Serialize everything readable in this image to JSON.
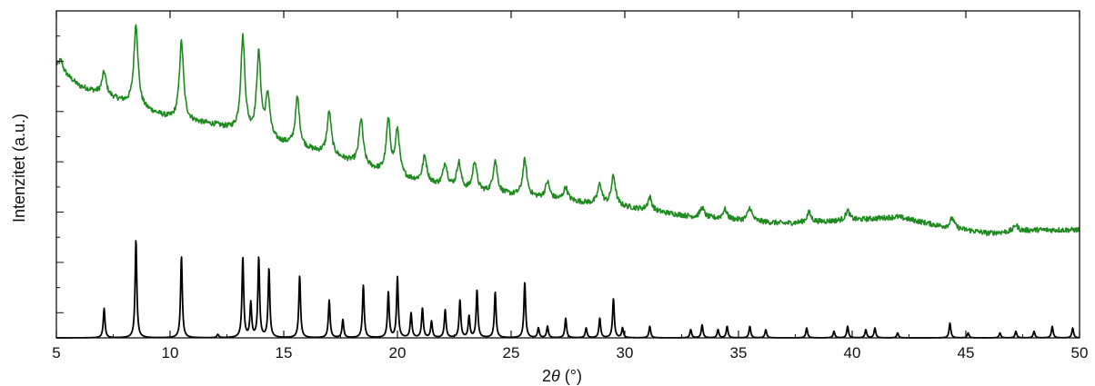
{
  "chart_data": {
    "type": "line",
    "xlabel": "2θ (°)",
    "ylabel": "Intenzitet (a.u.)",
    "xlim": [
      5,
      50
    ],
    "ylim": [
      0,
      100
    ],
    "x_ticks": [
      5,
      10,
      15,
      20,
      25,
      30,
      35,
      40,
      45,
      50
    ],
    "y_tick_labels": "none",
    "grid": false,
    "legend": "none",
    "series": [
      {
        "color": "#1f8a1f",
        "style": "noisy experimental pattern, offset upward",
        "baseline": [
          [
            5,
            83
          ],
          [
            6,
            77
          ],
          [
            8,
            72
          ],
          [
            10,
            67
          ],
          [
            12,
            65
          ],
          [
            14,
            61
          ],
          [
            17,
            56
          ],
          [
            20,
            49
          ],
          [
            23,
            45
          ],
          [
            26,
            43
          ],
          [
            30,
            40
          ],
          [
            33,
            37
          ],
          [
            37,
            35
          ],
          [
            40,
            36
          ],
          [
            42,
            37
          ],
          [
            44,
            34
          ],
          [
            46,
            32
          ],
          [
            48,
            33
          ],
          [
            50,
            33
          ]
        ],
        "peaks": [
          {
            "x": 5.2,
            "h": 3
          },
          {
            "x": 7.1,
            "h": 7
          },
          {
            "x": 8.5,
            "h": 25
          },
          {
            "x": 10.5,
            "h": 24
          },
          {
            "x": 13.2,
            "h": 29
          },
          {
            "x": 13.9,
            "h": 25
          },
          {
            "x": 14.3,
            "h": 13
          },
          {
            "x": 15.6,
            "h": 15
          },
          {
            "x": 17.0,
            "h": 13
          },
          {
            "x": 18.4,
            "h": 14
          },
          {
            "x": 19.6,
            "h": 16
          },
          {
            "x": 20.0,
            "h": 14
          },
          {
            "x": 21.2,
            "h": 8
          },
          {
            "x": 22.1,
            "h": 7
          },
          {
            "x": 22.7,
            "h": 8
          },
          {
            "x": 23.4,
            "h": 9
          },
          {
            "x": 24.3,
            "h": 10
          },
          {
            "x": 25.6,
            "h": 11
          },
          {
            "x": 26.6,
            "h": 5
          },
          {
            "x": 27.4,
            "h": 4
          },
          {
            "x": 28.9,
            "h": 6
          },
          {
            "x": 29.5,
            "h": 9
          },
          {
            "x": 31.1,
            "h": 4
          },
          {
            "x": 33.4,
            "h": 3
          },
          {
            "x": 34.4,
            "h": 3
          },
          {
            "x": 35.5,
            "h": 4
          },
          {
            "x": 38.1,
            "h": 3
          },
          {
            "x": 39.8,
            "h": 3
          },
          {
            "x": 44.4,
            "h": 3
          },
          {
            "x": 47.2,
            "h": 2
          }
        ]
      },
      {
        "color": "#000000",
        "style": "calculated pattern, sharp peaks",
        "baseline": [
          [
            5,
            0
          ],
          [
            50,
            0
          ]
        ],
        "peaks": [
          {
            "x": 7.1,
            "h": 9
          },
          {
            "x": 8.5,
            "h": 30
          },
          {
            "x": 10.5,
            "h": 25
          },
          {
            "x": 12.1,
            "h": 1
          },
          {
            "x": 13.2,
            "h": 24.5
          },
          {
            "x": 13.55,
            "h": 10.5
          },
          {
            "x": 13.9,
            "h": 24.5
          },
          {
            "x": 14.35,
            "h": 21
          },
          {
            "x": 15.7,
            "h": 19
          },
          {
            "x": 17.0,
            "h": 11.5
          },
          {
            "x": 17.6,
            "h": 5.5
          },
          {
            "x": 18.5,
            "h": 16
          },
          {
            "x": 19.6,
            "h": 14
          },
          {
            "x": 20.0,
            "h": 18.5
          },
          {
            "x": 20.6,
            "h": 7.5
          },
          {
            "x": 21.1,
            "h": 9
          },
          {
            "x": 21.5,
            "h": 5
          },
          {
            "x": 22.1,
            "h": 8.5
          },
          {
            "x": 22.75,
            "h": 11.5
          },
          {
            "x": 23.15,
            "h": 6.5
          },
          {
            "x": 23.5,
            "h": 14.5
          },
          {
            "x": 24.3,
            "h": 14
          },
          {
            "x": 25.6,
            "h": 17
          },
          {
            "x": 26.2,
            "h": 3
          },
          {
            "x": 26.6,
            "h": 3.5
          },
          {
            "x": 27.4,
            "h": 6
          },
          {
            "x": 28.3,
            "h": 3
          },
          {
            "x": 28.9,
            "h": 6
          },
          {
            "x": 29.5,
            "h": 12
          },
          {
            "x": 29.9,
            "h": 3
          },
          {
            "x": 31.1,
            "h": 3.5
          },
          {
            "x": 32.9,
            "h": 2.5
          },
          {
            "x": 33.4,
            "h": 4
          },
          {
            "x": 34.1,
            "h": 2.5
          },
          {
            "x": 34.5,
            "h": 3.5
          },
          {
            "x": 35.5,
            "h": 3.5
          },
          {
            "x": 36.2,
            "h": 2.5
          },
          {
            "x": 38.0,
            "h": 3
          },
          {
            "x": 39.2,
            "h": 2
          },
          {
            "x": 39.8,
            "h": 3.5
          },
          {
            "x": 40.6,
            "h": 2.5
          },
          {
            "x": 41.0,
            "h": 3
          },
          {
            "x": 42.0,
            "h": 1.5
          },
          {
            "x": 44.3,
            "h": 4.5
          },
          {
            "x": 45.1,
            "h": 1.5
          },
          {
            "x": 46.5,
            "h": 1.5
          },
          {
            "x": 47.2,
            "h": 2
          },
          {
            "x": 48.0,
            "h": 2
          },
          {
            "x": 48.8,
            "h": 3.5
          },
          {
            "x": 49.7,
            "h": 3
          }
        ]
      }
    ]
  }
}
